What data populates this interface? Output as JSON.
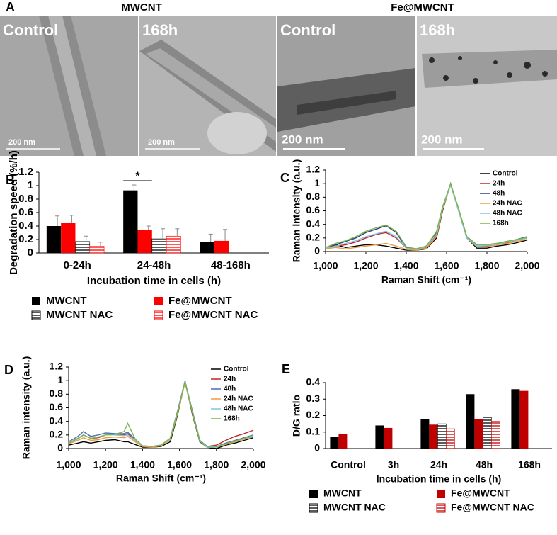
{
  "images": {
    "label": "A",
    "groups": [
      {
        "title": "MWCNT",
        "panels": [
          {
            "label": "Control",
            "scale": "200 nm"
          },
          {
            "label": "168h",
            "scale": "200 nm"
          }
        ]
      },
      {
        "title": "Fe@MWCNT",
        "panels": [
          {
            "label": "Control",
            "scale": "200 nm"
          },
          {
            "label": "168h",
            "scale": "200 nm"
          }
        ]
      }
    ]
  },
  "chart_data": [
    {
      "type": "bar",
      "label": "B",
      "x_label": "Incubation time in cells (h)",
      "y_label": "Degradation speed (%/h)",
      "categories": [
        "0-24h",
        "24-48h",
        "48-168h"
      ],
      "annotation": "*",
      "ylim": [
        0,
        1.2
      ],
      "yticks": [
        0,
        0.2,
        0.4,
        0.6,
        0.8,
        1,
        1.2
      ],
      "legend": "bottom",
      "series": [
        {
          "name": "MWCNT",
          "color": "#000000",
          "hatch": false,
          "values": [
            0.4,
            0.93,
            0.16
          ],
          "error": [
            0.15,
            0.08,
            0.12
          ]
        },
        {
          "name": "Fe@MWCNT",
          "color": "#ff0000",
          "hatch": false,
          "values": [
            0.45,
            0.34,
            0.18
          ],
          "error": [
            0.11,
            0.06,
            0.17
          ]
        },
        {
          "name": "MWCNT NAC",
          "color": "#000000",
          "hatch": true,
          "values": [
            0.17,
            0.21,
            null
          ],
          "error": [
            0.08,
            0.15,
            null
          ]
        },
        {
          "name": "Fe@MWCNT NAC",
          "color": "#ff0000",
          "hatch": true,
          "values": [
            0.1,
            0.25,
            null
          ],
          "error": [
            0.06,
            0.11,
            null
          ]
        }
      ]
    },
    {
      "type": "line",
      "label": "C",
      "x_label": "Raman Shift (cm⁻¹)",
      "y_label": "Raman intensity (a.u.)",
      "xlim": [
        1000,
        2000
      ],
      "xticks": [
        {
          "value": 1000,
          "label": "1,000"
        },
        {
          "value": 1200,
          "label": "1,200"
        },
        {
          "value": 1400,
          "label": "1,400"
        },
        {
          "value": 1600,
          "label": "1,600"
        },
        {
          "value": 1800,
          "label": "1,800"
        },
        {
          "value": 2000,
          "label": "2,000"
        }
      ],
      "ylim": [
        0,
        1.2
      ],
      "yticks": [
        0,
        0.2,
        0.4,
        0.6,
        0.8,
        1,
        1.2
      ],
      "legend": "upper right",
      "x": [
        1000,
        1050,
        1100,
        1150,
        1200,
        1250,
        1300,
        1350,
        1400,
        1450,
        1500,
        1550,
        1580,
        1620,
        1660,
        1700,
        1750,
        1800,
        1850,
        1900,
        1950,
        2000
      ],
      "series": [
        {
          "name": "Control",
          "color": "#000000",
          "values": [
            0.05,
            0.1,
            0.06,
            0.08,
            0.1,
            0.1,
            0.08,
            0.05,
            0.02,
            0.02,
            0.04,
            0.2,
            0.6,
            1.0,
            0.6,
            0.2,
            0.05,
            0.05,
            0.08,
            0.1,
            0.13,
            0.17
          ]
        },
        {
          "name": "24h",
          "color": "#c0272d",
          "values": [
            0.05,
            0.08,
            0.1,
            0.14,
            0.2,
            0.25,
            0.28,
            0.2,
            0.05,
            0.03,
            0.06,
            0.25,
            0.65,
            0.98,
            0.62,
            0.22,
            0.08,
            0.08,
            0.1,
            0.13,
            0.17,
            0.2
          ]
        },
        {
          "name": "48h",
          "color": "#2e3f7f",
          "values": [
            0.05,
            0.1,
            0.15,
            0.2,
            0.28,
            0.33,
            0.38,
            0.28,
            0.06,
            0.04,
            0.08,
            0.28,
            0.65,
            0.99,
            0.62,
            0.22,
            0.1,
            0.1,
            0.12,
            0.15,
            0.18,
            0.22
          ]
        },
        {
          "name": "24h NAC",
          "color": "#f29a3a",
          "values": [
            0.04,
            0.06,
            0.04,
            0.06,
            0.08,
            0.1,
            0.12,
            0.08,
            0.03,
            0.02,
            0.05,
            0.22,
            0.62,
            0.98,
            0.6,
            0.2,
            0.07,
            0.07,
            0.1,
            0.12,
            0.15,
            0.18
          ]
        },
        {
          "name": "48h NAC",
          "color": "#7fc6e0",
          "values": [
            0.05,
            0.08,
            0.12,
            0.16,
            0.22,
            0.26,
            0.3,
            0.22,
            0.05,
            0.03,
            0.07,
            0.26,
            0.64,
            0.98,
            0.6,
            0.2,
            0.08,
            0.09,
            0.11,
            0.14,
            0.17,
            0.2
          ]
        },
        {
          "name": "168h",
          "color": "#7ab648",
          "values": [
            0.06,
            0.12,
            0.16,
            0.22,
            0.3,
            0.35,
            0.39,
            0.3,
            0.07,
            0.04,
            0.08,
            0.3,
            0.66,
            1.0,
            0.63,
            0.22,
            0.1,
            0.1,
            0.12,
            0.15,
            0.18,
            0.21
          ]
        }
      ]
    },
    {
      "type": "line",
      "label": "D",
      "x_label": "Raman Shift (cm⁻¹)",
      "y_label": "Raman intensity (a.u.)",
      "xlim": [
        1000,
        2000
      ],
      "xticks": [
        {
          "value": 1000,
          "label": "1,000"
        },
        {
          "value": 1200,
          "label": "1,200"
        },
        {
          "value": 1400,
          "label": "1,400"
        },
        {
          "value": 1600,
          "label": "1,600"
        },
        {
          "value": 1800,
          "label": "1,800"
        },
        {
          "value": 2000,
          "label": "2,000"
        }
      ],
      "ylim": [
        0,
        1.2
      ],
      "yticks": [
        0,
        0.2,
        0.4,
        0.6,
        0.8,
        1,
        1.2
      ],
      "legend": "upper right",
      "x": [
        1000,
        1050,
        1080,
        1120,
        1160,
        1200,
        1250,
        1300,
        1320,
        1360,
        1400,
        1450,
        1500,
        1550,
        1590,
        1630,
        1670,
        1710,
        1750,
        1800,
        1850,
        1900,
        1950,
        2000
      ],
      "series": [
        {
          "name": "Control",
          "color": "#000000",
          "values": [
            0.05,
            0.08,
            0.1,
            0.08,
            0.1,
            0.12,
            0.13,
            0.1,
            0.1,
            0.06,
            0.02,
            0.02,
            0.03,
            0.1,
            0.5,
            0.99,
            0.5,
            0.1,
            0.02,
            0.0,
            0.05,
            0.08,
            0.12,
            0.16
          ]
        },
        {
          "name": "24h",
          "color": "#c0272d",
          "values": [
            0.08,
            0.15,
            0.2,
            0.15,
            0.16,
            0.2,
            0.2,
            0.2,
            0.22,
            0.12,
            0.04,
            0.03,
            0.05,
            0.15,
            0.55,
            0.98,
            0.55,
            0.12,
            0.03,
            0.05,
            0.12,
            0.18,
            0.22,
            0.27
          ]
        },
        {
          "name": "48h",
          "color": "#4a6fb5",
          "values": [
            0.1,
            0.18,
            0.25,
            0.18,
            0.2,
            0.23,
            0.22,
            0.22,
            0.24,
            0.14,
            0.04,
            0.03,
            0.05,
            0.15,
            0.56,
            0.99,
            0.55,
            0.12,
            0.03,
            0.03,
            0.08,
            0.12,
            0.16,
            0.2
          ]
        },
        {
          "name": "24h NAC",
          "color": "#f29a3a",
          "values": [
            0.07,
            0.12,
            0.16,
            0.12,
            0.13,
            0.16,
            0.17,
            0.16,
            0.18,
            0.1,
            0.03,
            0.02,
            0.04,
            0.13,
            0.52,
            0.97,
            0.52,
            0.11,
            0.02,
            0.02,
            0.06,
            0.1,
            0.14,
            0.18
          ]
        },
        {
          "name": "48h NAC",
          "color": "#7fc6e0",
          "values": [
            0.08,
            0.14,
            0.2,
            0.15,
            0.17,
            0.2,
            0.2,
            0.19,
            0.2,
            0.12,
            0.04,
            0.03,
            0.05,
            0.14,
            0.54,
            0.98,
            0.53,
            0.11,
            0.02,
            0.02,
            0.07,
            0.11,
            0.15,
            0.19
          ]
        },
        {
          "name": "168h",
          "color": "#7ab648",
          "values": [
            0.08,
            0.15,
            0.2,
            0.15,
            0.17,
            0.2,
            0.21,
            0.25,
            0.37,
            0.14,
            0.04,
            0.03,
            0.05,
            0.15,
            0.55,
            0.98,
            0.54,
            0.12,
            0.03,
            0.03,
            0.07,
            0.11,
            0.15,
            0.18
          ]
        }
      ]
    },
    {
      "type": "bar",
      "label": "E",
      "x_label": "Incubation time in cells (h)",
      "y_label": "D/G ratio",
      "categories": [
        "Control",
        "3h",
        "24h",
        "48h",
        "168h"
      ],
      "ylim": [
        0,
        0.4
      ],
      "yticks": [
        0,
        0.1,
        0.2,
        0.3,
        0.4
      ],
      "legend": "bottom",
      "series": [
        {
          "name": "MWCNT",
          "color": "#000000",
          "hatch": false,
          "values": [
            0.07,
            0.14,
            0.18,
            0.33,
            0.36
          ]
        },
        {
          "name": "Fe@MWCNT",
          "color": "#c00000",
          "hatch": false,
          "values": [
            0.09,
            0.125,
            0.145,
            0.18,
            0.35
          ]
        },
        {
          "name": "MWCNT NAC",
          "color": "#000000",
          "hatch": true,
          "values": [
            null,
            null,
            0.15,
            0.19,
            null
          ]
        },
        {
          "name": "Fe@MWCNT NAC",
          "color": "#c00000",
          "hatch": true,
          "values": [
            null,
            null,
            0.12,
            0.165,
            null
          ]
        }
      ]
    }
  ]
}
